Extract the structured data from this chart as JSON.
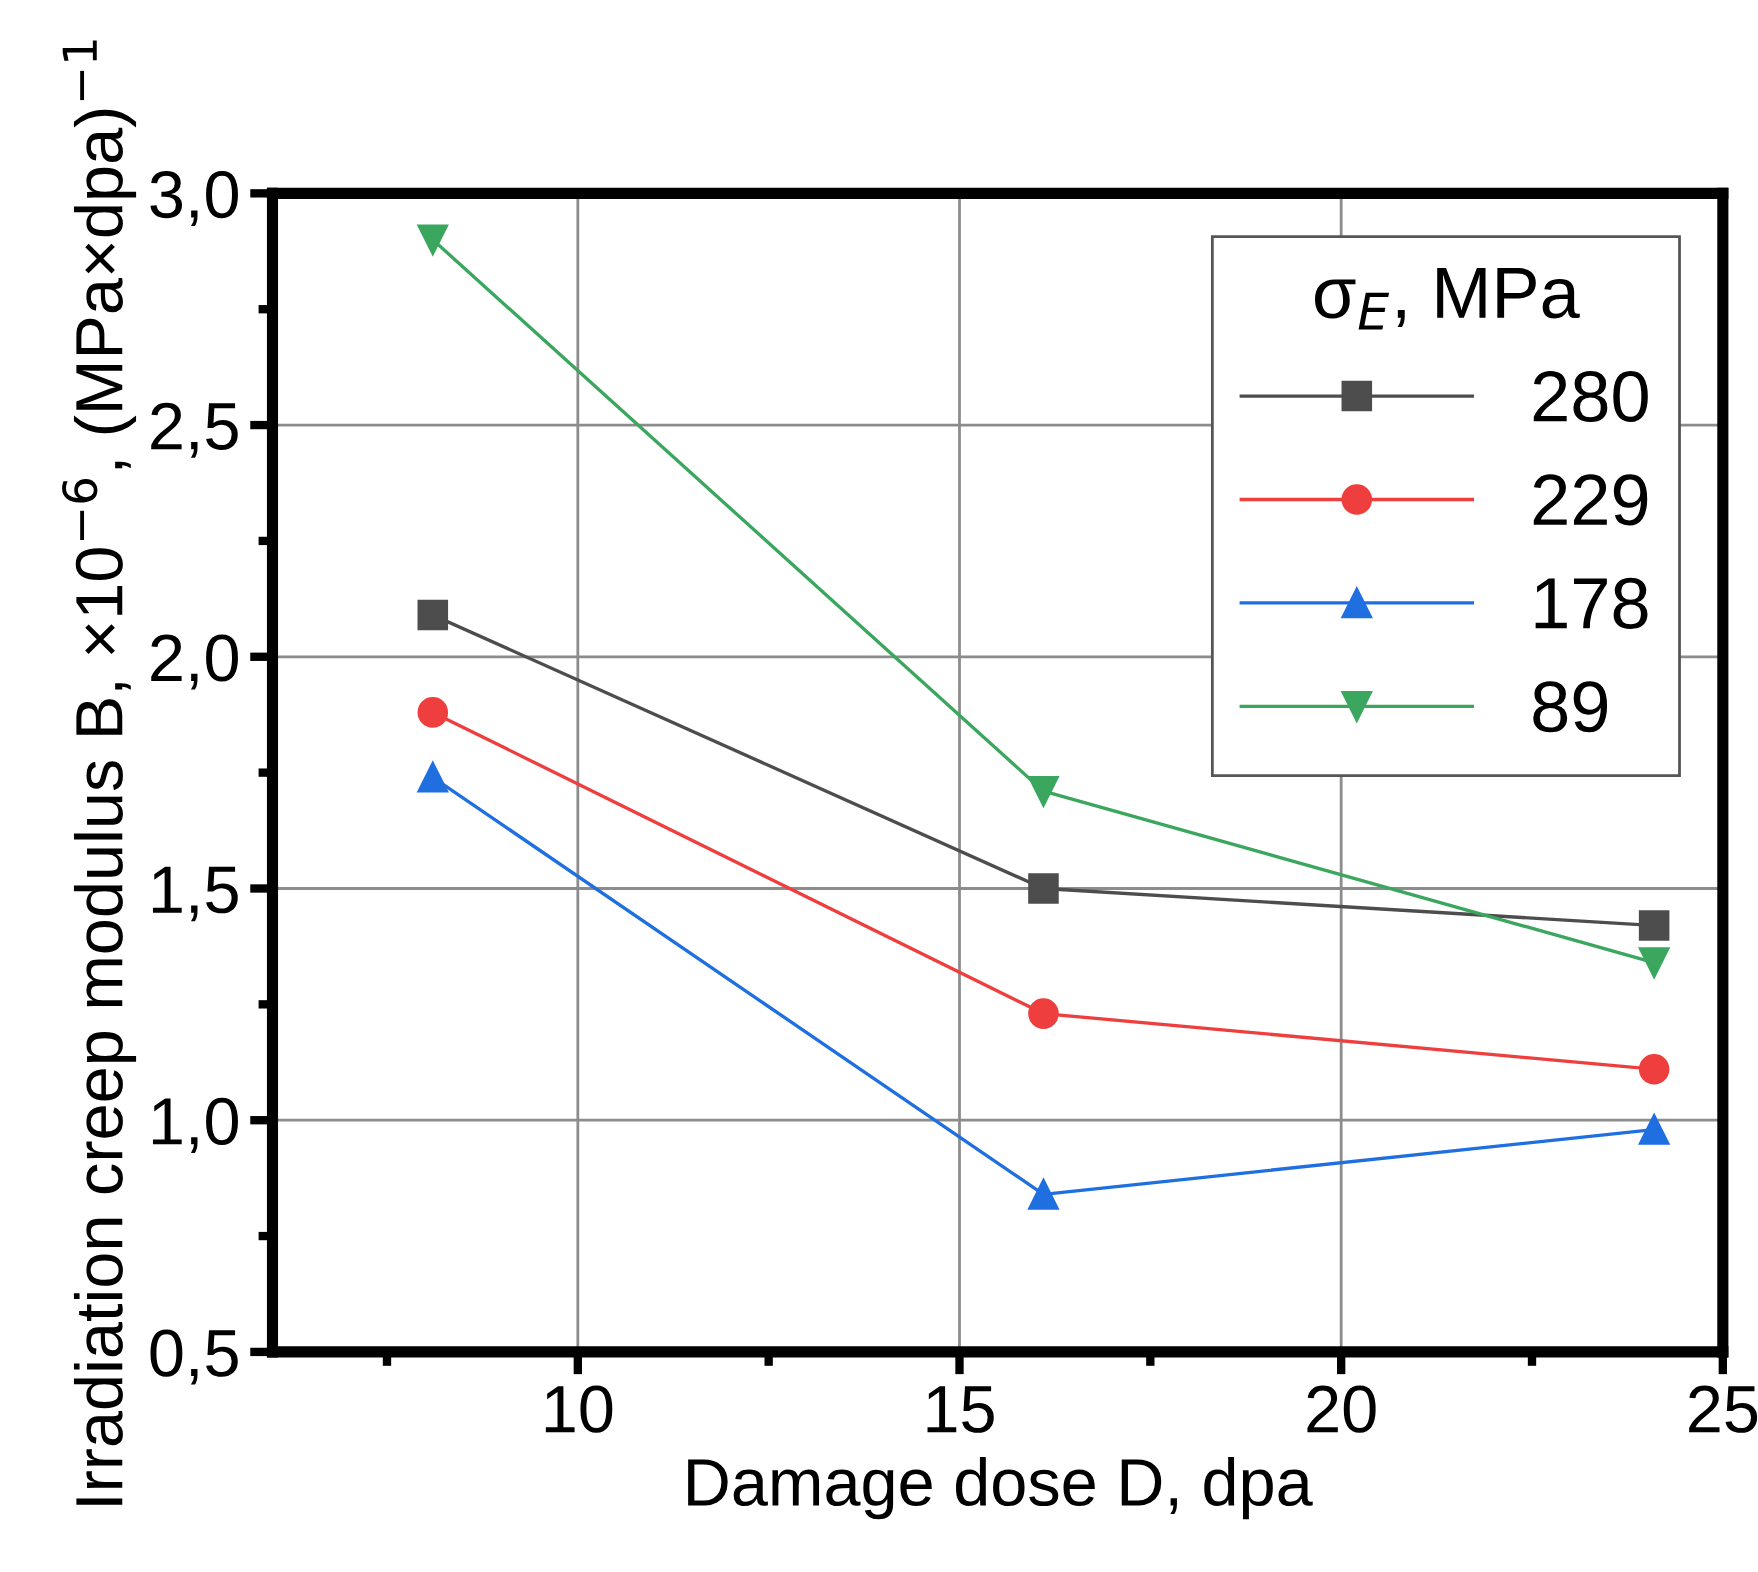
{
  "chart_data": {
    "type": "line",
    "xlabel": "Damage dose D, dpa",
    "ylabel": "Irradiation creep modulus B, ×10$^{−6}$, (MPa×dpa)$^{−1}$",
    "legend_title": "σ$_{E}$, MPa",
    "x": [
      8.1,
      16.1,
      24.1
    ],
    "series": [
      {
        "name": "280",
        "color": "#4d4d4d",
        "marker": "square",
        "values": [
          2.09,
          1.5,
          1.42
        ]
      },
      {
        "name": "229",
        "color": "#ef3e3e",
        "marker": "circle",
        "values": [
          1.88,
          1.23,
          1.11
        ]
      },
      {
        "name": "178",
        "color": "#1f6fe0",
        "marker": "triangle",
        "values": [
          1.74,
          0.84,
          0.98
        ]
      },
      {
        "name": "89",
        "color": "#3aa65e",
        "marker": "triangle_down",
        "values": [
          2.9,
          1.71,
          1.34
        ]
      }
    ],
    "xlim": [
      6,
      25
    ],
    "xticks": [
      10,
      15,
      20,
      25
    ],
    "ylim": [
      0.5,
      3.0
    ],
    "yticks": [
      {
        "value": 0.5,
        "label": "0,5"
      },
      {
        "value": 1.0,
        "label": "1,0"
      },
      {
        "value": 1.5,
        "label": "1,5"
      },
      {
        "value": 2.0,
        "label": "2,0"
      },
      {
        "value": 2.5,
        "label": "2,5"
      },
      {
        "value": 3.0,
        "label": "3,0"
      }
    ],
    "grid": true,
    "legend": "top right",
    "line_style": "solid"
  }
}
